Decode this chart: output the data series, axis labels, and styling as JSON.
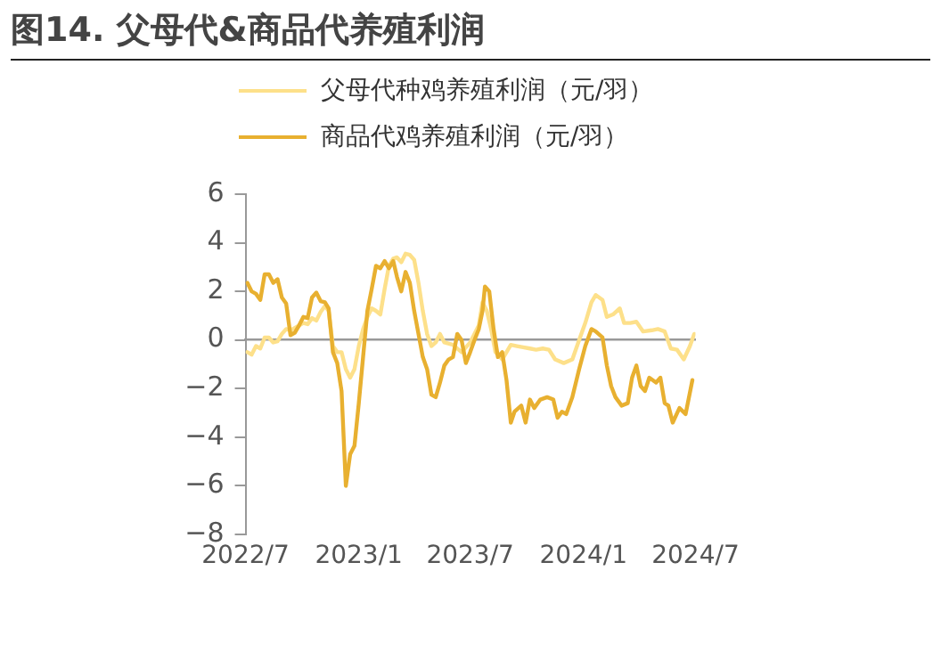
{
  "chart_data": {
    "type": "line",
    "title": "图14. 父母代&商品代养殖利润",
    "legend": "top",
    "xlim": [
      "2022-07-01",
      "2024-07-01"
    ],
    "xticks": [
      {
        "value": "2022-07-01",
        "label": "2022/7"
      },
      {
        "value": "2023-01-01",
        "label": "2023/1"
      },
      {
        "value": "2023-07-01",
        "label": "2023/7"
      },
      {
        "value": "2024-01-01",
        "label": "2024/1"
      },
      {
        "value": "2024-07-01",
        "label": "2024/7"
      }
    ],
    "ylim": [
      -8,
      6
    ],
    "yticks": [
      -8,
      -6,
      -4,
      -2,
      0,
      2,
      4,
      6
    ],
    "marker": "none",
    "line_style": "solid",
    "series": [
      {
        "name": "父母代种鸡养殖利润（元/羽）",
        "color": "#fde08a",
        "x": [
          "2022-07-04",
          "2022-07-11",
          "2022-07-18",
          "2022-07-25",
          "2022-08-01",
          "2022-08-08",
          "2022-08-15",
          "2022-08-22",
          "2022-08-29",
          "2022-09-05",
          "2022-09-12",
          "2022-09-26",
          "2022-10-03",
          "2022-10-10",
          "2022-10-17",
          "2022-10-24",
          "2022-10-31",
          "2022-11-07",
          "2022-11-13",
          "2022-11-20",
          "2022-11-27",
          "2022-12-04",
          "2022-12-11",
          "2022-12-18",
          "2022-12-25",
          "2023-01-01",
          "2023-01-08",
          "2023-01-15",
          "2023-01-22",
          "2023-01-29",
          "2023-02-05",
          "2023-02-12",
          "2023-02-19",
          "2023-02-26",
          "2023-03-04",
          "2023-03-11",
          "2023-03-18",
          "2023-03-25",
          "2023-04-01",
          "2023-04-08",
          "2023-04-15",
          "2023-04-22",
          "2023-04-29",
          "2023-05-06",
          "2023-05-13",
          "2023-05-20",
          "2023-06-03",
          "2023-06-17",
          "2023-07-01",
          "2023-07-15",
          "2023-07-21",
          "2023-07-28",
          "2023-08-04",
          "2023-08-11",
          "2023-08-22",
          "2023-08-29",
          "2023-09-05",
          "2023-09-15",
          "2023-09-25",
          "2023-10-06",
          "2023-10-16",
          "2023-10-27",
          "2023-11-06",
          "2023-11-16",
          "2023-11-30",
          "2023-12-14",
          "2023-12-25",
          "2024-01-04",
          "2024-01-14",
          "2024-01-21",
          "2024-02-01",
          "2024-02-08",
          "2024-02-18",
          "2024-02-29",
          "2024-03-07",
          "2024-03-17",
          "2024-03-27",
          "2024-04-07",
          "2024-04-21",
          "2024-05-01",
          "2024-05-12",
          "2024-05-22",
          "2024-06-01",
          "2024-06-12",
          "2024-06-22",
          "2024-06-29"
        ],
        "values": [
          -0.5,
          -0.6,
          -0.25,
          -0.35,
          0.1,
          0.1,
          -0.1,
          -0.05,
          0.25,
          0.45,
          0.4,
          0.6,
          0.7,
          0.65,
          0.9,
          0.8,
          1.15,
          1.4,
          1.2,
          -0.25,
          -0.5,
          -0.5,
          -1.2,
          -1.55,
          -1.2,
          -0.25,
          0.45,
          0.95,
          1.3,
          1.2,
          1.05,
          2.1,
          3.05,
          3.35,
          3.4,
          3.2,
          3.55,
          3.5,
          3.3,
          2.35,
          1.2,
          0.25,
          -0.25,
          -0.1,
          0.25,
          -0.1,
          -0.2,
          -0.5,
          -0.1,
          0.6,
          1.55,
          1.2,
          0.45,
          -0.5,
          -0.8,
          -0.5,
          -0.2,
          -0.25,
          -0.3,
          -0.35,
          -0.4,
          -0.35,
          -0.4,
          -0.8,
          -0.95,
          -0.8,
          0,
          0.7,
          1.55,
          1.85,
          1.65,
          0.95,
          1.05,
          1.3,
          0.7,
          0.7,
          0.75,
          0.35,
          0.4,
          0.45,
          0.35,
          -0.35,
          -0.4,
          -0.8,
          -0.25,
          0.25
        ]
      },
      {
        "name": "商品代鸡养殖利润（元/羽）",
        "color": "#e8b030",
        "x": [
          "2022-07-04",
          "2022-07-11",
          "2022-07-18",
          "2022-07-25",
          "2022-08-01",
          "2022-08-08",
          "2022-08-15",
          "2022-08-22",
          "2022-08-29",
          "2022-09-05",
          "2022-09-12",
          "2022-09-19",
          "2022-09-26",
          "2022-10-03",
          "2022-10-10",
          "2022-10-17",
          "2022-10-24",
          "2022-10-31",
          "2022-11-07",
          "2022-11-13",
          "2022-11-20",
          "2022-11-27",
          "2022-12-04",
          "2022-12-11",
          "2022-12-18",
          "2022-12-25",
          "2023-01-01",
          "2023-01-08",
          "2023-01-15",
          "2023-01-22",
          "2023-01-29",
          "2023-02-05",
          "2023-02-12",
          "2023-02-19",
          "2023-02-26",
          "2023-03-04",
          "2023-03-11",
          "2023-03-18",
          "2023-03-25",
          "2023-04-01",
          "2023-04-08",
          "2023-04-15",
          "2023-04-22",
          "2023-04-29",
          "2023-05-06",
          "2023-05-13",
          "2023-05-20",
          "2023-05-27",
          "2023-06-03",
          "2023-06-10",
          "2023-06-17",
          "2023-06-24",
          "2023-07-01",
          "2023-07-08",
          "2023-07-15",
          "2023-07-21",
          "2023-07-25",
          "2023-08-01",
          "2023-08-08",
          "2023-08-15",
          "2023-08-22",
          "2023-08-29",
          "2023-09-05",
          "2023-09-11",
          "2023-09-22",
          "2023-09-29",
          "2023-10-06",
          "2023-10-13",
          "2023-10-23",
          "2023-11-03",
          "2023-11-13",
          "2023-11-20",
          "2023-11-27",
          "2023-12-04",
          "2023-12-14",
          "2023-12-25",
          "2024-01-04",
          "2024-01-14",
          "2024-01-21",
          "2024-02-01",
          "2024-02-08",
          "2024-02-15",
          "2024-02-22",
          "2024-03-03",
          "2024-03-13",
          "2024-03-20",
          "2024-03-27",
          "2024-04-03",
          "2024-04-10",
          "2024-04-17",
          "2024-04-28",
          "2024-05-05",
          "2024-05-12",
          "2024-05-18",
          "2024-05-25",
          "2024-06-05",
          "2024-06-15",
          "2024-06-26"
        ],
        "values": [
          2.35,
          2.0,
          1.9,
          1.65,
          2.7,
          2.7,
          2.35,
          2.5,
          1.75,
          1.5,
          0.2,
          0.3,
          0.6,
          0.95,
          0.9,
          1.75,
          1.95,
          1.6,
          1.55,
          1.3,
          -0.5,
          -0.95,
          -2.1,
          -6.0,
          -4.7,
          -4.35,
          -2.6,
          -0.7,
          1.2,
          2.1,
          3.05,
          2.95,
          3.25,
          2.95,
          3.25,
          2.6,
          2.0,
          2.8,
          2.35,
          1.2,
          0.25,
          -0.7,
          -1.2,
          -2.25,
          -2.35,
          -1.75,
          -1.05,
          -0.8,
          -0.7,
          0.25,
          0,
          -0.95,
          -0.5,
          0,
          0.45,
          1.2,
          2.2,
          2.0,
          0.45,
          -0.7,
          -0.5,
          -1.65,
          -3.4,
          -2.95,
          -2.7,
          -3.4,
          -2.45,
          -2.8,
          -2.45,
          -2.35,
          -2.45,
          -3.2,
          -2.95,
          -3.05,
          -2.35,
          -1.2,
          -0.25,
          0.45,
          0.35,
          0.1,
          -1.05,
          -1.9,
          -2.35,
          -2.7,
          -2.6,
          -1.55,
          -1.05,
          -1.9,
          -2.1,
          -1.55,
          -1.75,
          -1.55,
          -2.6,
          -2.7,
          -3.4,
          -2.8,
          -3.05,
          -1.65
        ]
      }
    ]
  }
}
